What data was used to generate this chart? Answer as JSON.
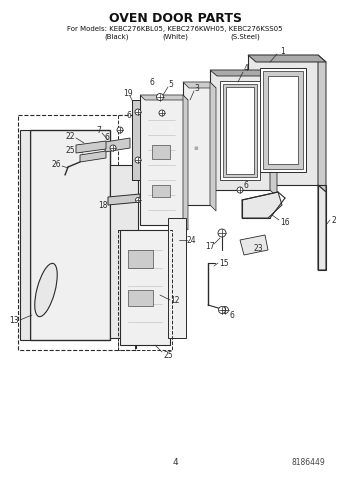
{
  "title": "OVEN DOOR PARTS",
  "subtitle": "For Models: KEBC276KBL05, KEBC276KWH05, KEBC276KSS05",
  "subtitle2_black": "(Black)",
  "subtitle2_white": "(White)",
  "subtitle2_ss": "(S.Steel)",
  "page_number": "4",
  "doc_number": "8186449",
  "bg_color": "#ffffff",
  "line_color": "#2a2a2a",
  "figsize": [
    3.5,
    4.83
  ],
  "dpi": 100,
  "gray_light": "#e8e8e8",
  "gray_mid": "#cccccc",
  "gray_dark": "#aaaaaa",
  "gray_panel": "#d8d8d8",
  "gray_fill": "#f0f0f0"
}
